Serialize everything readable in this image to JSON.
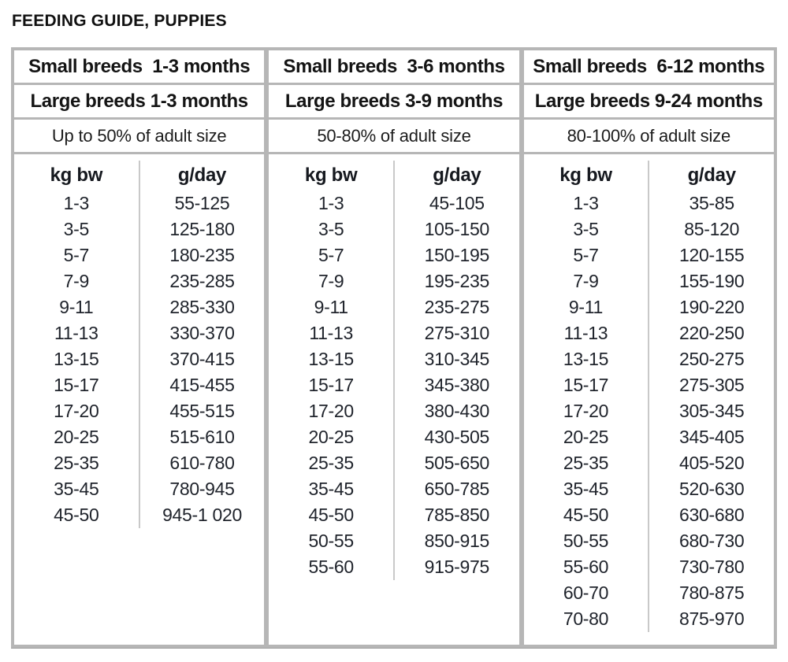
{
  "chart_data": {
    "type": "table",
    "title": "FEEDING GUIDE, PUPPIES",
    "col_headers": [
      "kg bw",
      "g/day"
    ],
    "colors": {
      "table_border": "#b6b6b6",
      "cell_background": "#ffffff",
      "header_text": "#141414",
      "data_text": "#20242c",
      "inner_divider": "#c9c9c9"
    },
    "groups": [
      {
        "header_small": "Small breeds  1-3 months",
        "header_large": "Large breeds 1-3 months",
        "adult_size": "Up to 50% of adult size",
        "rows": [
          {
            "kg": "1-3",
            "g": "55-125"
          },
          {
            "kg": "3-5",
            "g": "125-180"
          },
          {
            "kg": "5-7",
            "g": "180-235"
          },
          {
            "kg": "7-9",
            "g": "235-285"
          },
          {
            "kg": "9-11",
            "g": "285-330"
          },
          {
            "kg": "11-13",
            "g": "330-370"
          },
          {
            "kg": "13-15",
            "g": "370-415"
          },
          {
            "kg": "15-17",
            "g": "415-455"
          },
          {
            "kg": "17-20",
            "g": "455-515"
          },
          {
            "kg": "20-25",
            "g": "515-610"
          },
          {
            "kg": "25-35",
            "g": "610-780"
          },
          {
            "kg": "35-45",
            "g": "780-945"
          },
          {
            "kg": "45-50",
            "g": "945-1 020"
          }
        ]
      },
      {
        "header_small": "Small breeds  3-6 months",
        "header_large": "Large breeds 3-9 months",
        "adult_size": "50-80% of adult size",
        "rows": [
          {
            "kg": "1-3",
            "g": "45-105"
          },
          {
            "kg": "3-5",
            "g": "105-150"
          },
          {
            "kg": "5-7",
            "g": "150-195"
          },
          {
            "kg": "7-9",
            "g": "195-235"
          },
          {
            "kg": "9-11",
            "g": "235-275"
          },
          {
            "kg": "11-13",
            "g": "275-310"
          },
          {
            "kg": "13-15",
            "g": "310-345"
          },
          {
            "kg": "15-17",
            "g": "345-380"
          },
          {
            "kg": "17-20",
            "g": "380-430"
          },
          {
            "kg": "20-25",
            "g": "430-505"
          },
          {
            "kg": "25-35",
            "g": "505-650"
          },
          {
            "kg": "35-45",
            "g": "650-785"
          },
          {
            "kg": "45-50",
            "g": "785-850"
          },
          {
            "kg": "50-55",
            "g": "850-915"
          },
          {
            "kg": "55-60",
            "g": "915-975"
          }
        ]
      },
      {
        "header_small": "Small breeds  6-12 months",
        "header_large": "Large breeds 9-24 months",
        "adult_size": "80-100% of adult size",
        "rows": [
          {
            "kg": "1-3",
            "g": "35-85"
          },
          {
            "kg": "3-5",
            "g": "85-120"
          },
          {
            "kg": "5-7",
            "g": "120-155"
          },
          {
            "kg": "7-9",
            "g": "155-190"
          },
          {
            "kg": "9-11",
            "g": "190-220"
          },
          {
            "kg": "11-13",
            "g": "220-250"
          },
          {
            "kg": "13-15",
            "g": "250-275"
          },
          {
            "kg": "15-17",
            "g": "275-305"
          },
          {
            "kg": "17-20",
            "g": "305-345"
          },
          {
            "kg": "20-25",
            "g": "345-405"
          },
          {
            "kg": "25-35",
            "g": "405-520"
          },
          {
            "kg": "35-45",
            "g": "520-630"
          },
          {
            "kg": "45-50",
            "g": "630-680"
          },
          {
            "kg": "50-55",
            "g": "680-730"
          },
          {
            "kg": "55-60",
            "g": "730-780"
          },
          {
            "kg": "60-70",
            "g": "780-875"
          },
          {
            "kg": "70-80",
            "g": "875-970"
          }
        ]
      }
    ]
  }
}
